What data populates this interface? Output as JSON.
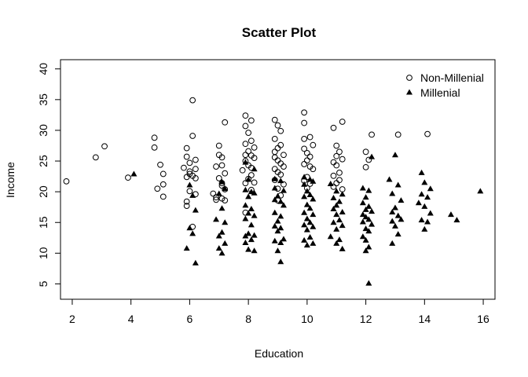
{
  "chart_data": {
    "type": "scatter",
    "title": "Scatter Plot",
    "xlabel": "Education",
    "ylabel": "Income",
    "xlim": [
      1.6,
      16.4
    ],
    "ylim": [
      2.5,
      41.5
    ],
    "xticks": [
      "2",
      "4",
      "6",
      "8",
      "10",
      "12",
      "14",
      "16"
    ],
    "yticks": [
      "5",
      "10",
      "15",
      "20",
      "25",
      "30",
      "35",
      "40"
    ],
    "grid": false,
    "legend_position": "top-right",
    "series": [
      {
        "name": "Non-Millenial",
        "marker": "open-circle",
        "color": "#000000",
        "points": [
          [
            1.8,
            21.7
          ],
          [
            2.8,
            25.6
          ],
          [
            3.1,
            27.4
          ],
          [
            3.9,
            22.3
          ],
          [
            4.8,
            28.8
          ],
          [
            4.8,
            27.2
          ],
          [
            5.0,
            24.4
          ],
          [
            5.1,
            22.9
          ],
          [
            4.9,
            20.5
          ],
          [
            5.1,
            21.2
          ],
          [
            5.1,
            19.2
          ],
          [
            5.9,
            27.1
          ],
          [
            6.1,
            34.9
          ],
          [
            6.1,
            29.1
          ],
          [
            5.9,
            25.7
          ],
          [
            6.2,
            25.2
          ],
          [
            6.0,
            24.7
          ],
          [
            5.8,
            23.9
          ],
          [
            6.0,
            23.3
          ],
          [
            6.2,
            23.7
          ],
          [
            6.1,
            22.6
          ],
          [
            5.9,
            22.4
          ],
          [
            6.0,
            22.9
          ],
          [
            6.2,
            22.2
          ],
          [
            6.0,
            20.1
          ],
          [
            6.2,
            19.6
          ],
          [
            5.9,
            18.4
          ],
          [
            5.9,
            17.7
          ],
          [
            6.1,
            14.3
          ],
          [
            7.2,
            31.3
          ],
          [
            7.0,
            27.5
          ],
          [
            7.0,
            26.0
          ],
          [
            7.1,
            25.6
          ],
          [
            6.9,
            24.1
          ],
          [
            7.1,
            24.3
          ],
          [
            7.2,
            23.0
          ],
          [
            7.0,
            22.2
          ],
          [
            7.1,
            21.4
          ],
          [
            7.1,
            21.0
          ],
          [
            7.2,
            20.4
          ],
          [
            6.8,
            19.7
          ],
          [
            6.9,
            19.1
          ],
          [
            6.9,
            18.7
          ],
          [
            7.1,
            18.9
          ],
          [
            7.2,
            18.6
          ],
          [
            7.9,
            32.4
          ],
          [
            8.1,
            31.6
          ],
          [
            7.9,
            30.7
          ],
          [
            8.0,
            29.6
          ],
          [
            8.1,
            28.3
          ],
          [
            7.9,
            27.8
          ],
          [
            8.2,
            27.2
          ],
          [
            8.0,
            26.6
          ],
          [
            7.9,
            26.0
          ],
          [
            8.1,
            25.9
          ],
          [
            8.2,
            25.5
          ],
          [
            7.9,
            25.0
          ],
          [
            8.0,
            24.3
          ],
          [
            8.1,
            23.9
          ],
          [
            7.8,
            23.5
          ],
          [
            8.1,
            22.7
          ],
          [
            8.0,
            22.1
          ],
          [
            7.9,
            21.4
          ],
          [
            8.2,
            21.5
          ],
          [
            8.1,
            20.3
          ],
          [
            7.9,
            16.6
          ],
          [
            8.9,
            31.7
          ],
          [
            9.0,
            30.8
          ],
          [
            9.1,
            29.9
          ],
          [
            8.9,
            28.6
          ],
          [
            9.1,
            27.6
          ],
          [
            9.0,
            27.1
          ],
          [
            8.9,
            26.5
          ],
          [
            9.2,
            26.0
          ],
          [
            8.9,
            25.6
          ],
          [
            9.0,
            25.1
          ],
          [
            9.1,
            24.6
          ],
          [
            9.2,
            24.1
          ],
          [
            8.9,
            23.7
          ],
          [
            9.0,
            23.2
          ],
          [
            9.1,
            22.8
          ],
          [
            8.9,
            21.9
          ],
          [
            9.2,
            21.2
          ],
          [
            9.0,
            20.5
          ],
          [
            9.1,
            19.4
          ],
          [
            9.0,
            18.6
          ],
          [
            9.9,
            32.9
          ],
          [
            9.9,
            31.2
          ],
          [
            10.1,
            28.9
          ],
          [
            9.9,
            28.6
          ],
          [
            10.2,
            27.6
          ],
          [
            9.9,
            27.0
          ],
          [
            10.0,
            26.3
          ],
          [
            10.1,
            25.7
          ],
          [
            10.0,
            25.1
          ],
          [
            9.9,
            24.5
          ],
          [
            10.1,
            24.1
          ],
          [
            10.2,
            23.7
          ],
          [
            10.0,
            22.4
          ],
          [
            9.9,
            21.8
          ],
          [
            10.1,
            21.3
          ],
          [
            10.0,
            20.6
          ],
          [
            10.9,
            30.4
          ],
          [
            11.2,
            31.4
          ],
          [
            11.0,
            27.5
          ],
          [
            11.1,
            26.5
          ],
          [
            11.0,
            25.8
          ],
          [
            11.2,
            25.3
          ],
          [
            10.9,
            24.8
          ],
          [
            11.0,
            24.3
          ],
          [
            11.1,
            23.1
          ],
          [
            10.9,
            22.6
          ],
          [
            11.1,
            21.9
          ],
          [
            11.0,
            21.4
          ],
          [
            10.9,
            20.8
          ],
          [
            11.2,
            20.4
          ],
          [
            12.0,
            26.5
          ],
          [
            12.2,
            29.3
          ],
          [
            12.1,
            25.2
          ],
          [
            12.0,
            24.0
          ],
          [
            13.1,
            29.3
          ],
          [
            14.1,
            29.4
          ]
        ]
      },
      {
        "name": "Millenial",
        "marker": "filled-triangle",
        "color": "#000000",
        "points": [
          [
            4.1,
            22.9
          ],
          [
            6.0,
            21.1
          ],
          [
            6.1,
            19.4
          ],
          [
            6.2,
            17.0
          ],
          [
            6.0,
            14.1
          ],
          [
            6.1,
            13.2
          ],
          [
            5.9,
            10.8
          ],
          [
            6.2,
            8.4
          ],
          [
            7.1,
            21.6
          ],
          [
            7.2,
            20.5
          ],
          [
            7.0,
            19.7
          ],
          [
            7.1,
            17.3
          ],
          [
            6.9,
            15.5
          ],
          [
            7.2,
            15.0
          ],
          [
            7.1,
            13.4
          ],
          [
            7.0,
            12.8
          ],
          [
            7.2,
            11.6
          ],
          [
            7.0,
            10.8
          ],
          [
            7.1,
            10.0
          ],
          [
            7.9,
            24.8
          ],
          [
            8.2,
            23.7
          ],
          [
            8.0,
            22.0
          ],
          [
            7.9,
            20.3
          ],
          [
            8.1,
            20.0
          ],
          [
            8.2,
            19.8
          ],
          [
            8.0,
            19.2
          ],
          [
            7.9,
            17.8
          ],
          [
            8.1,
            17.2
          ],
          [
            8.0,
            16.5
          ],
          [
            8.2,
            16.1
          ],
          [
            7.9,
            15.6
          ],
          [
            8.1,
            14.6
          ],
          [
            8.0,
            13.2
          ],
          [
            7.9,
            12.8
          ],
          [
            8.2,
            12.9
          ],
          [
            8.1,
            12.2
          ],
          [
            7.9,
            11.7
          ],
          [
            8.0,
            10.6
          ],
          [
            8.2,
            10.4
          ],
          [
            8.9,
            22.1
          ],
          [
            9.1,
            21.8
          ],
          [
            8.9,
            20.6
          ],
          [
            9.2,
            20.2
          ],
          [
            9.0,
            19.3
          ],
          [
            8.9,
            18.7
          ],
          [
            9.1,
            18.4
          ],
          [
            9.2,
            17.8
          ],
          [
            8.9,
            16.6
          ],
          [
            9.1,
            16.0
          ],
          [
            9.0,
            15.2
          ],
          [
            8.9,
            14.4
          ],
          [
            9.1,
            14.1
          ],
          [
            9.0,
            13.6
          ],
          [
            9.2,
            12.3
          ],
          [
            8.9,
            12.0
          ],
          [
            9.1,
            11.7
          ],
          [
            9.0,
            10.4
          ],
          [
            9.1,
            8.6
          ],
          [
            9.9,
            22.4
          ],
          [
            10.1,
            22.0
          ],
          [
            10.2,
            21.7
          ],
          [
            9.9,
            21.2
          ],
          [
            10.0,
            20.1
          ],
          [
            10.1,
            19.5
          ],
          [
            9.9,
            19.2
          ],
          [
            10.2,
            18.8
          ],
          [
            10.0,
            17.9
          ],
          [
            10.1,
            17.3
          ],
          [
            9.9,
            16.6
          ],
          [
            10.2,
            16.3
          ],
          [
            10.0,
            15.6
          ],
          [
            10.1,
            15.0
          ],
          [
            9.9,
            14.6
          ],
          [
            10.2,
            14.3
          ],
          [
            10.0,
            13.8
          ],
          [
            10.1,
            12.6
          ],
          [
            9.9,
            12.1
          ],
          [
            10.2,
            11.6
          ],
          [
            10.0,
            11.3
          ],
          [
            10.8,
            21.3
          ],
          [
            11.0,
            20.1
          ],
          [
            11.2,
            19.6
          ],
          [
            10.9,
            19.0
          ],
          [
            11.1,
            18.4
          ],
          [
            11.0,
            17.8
          ],
          [
            10.9,
            17.2
          ],
          [
            11.2,
            16.7
          ],
          [
            11.0,
            16.3
          ],
          [
            11.1,
            15.4
          ],
          [
            10.9,
            15.0
          ],
          [
            11.2,
            14.5
          ],
          [
            11.0,
            13.9
          ],
          [
            10.8,
            12.7
          ],
          [
            11.1,
            12.2
          ],
          [
            11.0,
            11.6
          ],
          [
            11.2,
            10.7
          ],
          [
            11.9,
            20.6
          ],
          [
            12.1,
            20.2
          ],
          [
            12.2,
            25.7
          ],
          [
            12.0,
            19.1
          ],
          [
            11.9,
            18.2
          ],
          [
            12.1,
            17.6
          ],
          [
            12.0,
            17.1
          ],
          [
            12.2,
            16.8
          ],
          [
            11.9,
            16.3
          ],
          [
            12.0,
            15.9
          ],
          [
            12.1,
            15.5
          ],
          [
            11.9,
            15.1
          ],
          [
            12.2,
            14.7
          ],
          [
            12.0,
            14.0
          ],
          [
            12.1,
            13.6
          ],
          [
            11.9,
            12.7
          ],
          [
            12.0,
            12.1
          ],
          [
            12.1,
            11.0
          ],
          [
            12.0,
            10.4
          ],
          [
            12.1,
            5.1
          ],
          [
            12.8,
            22.0
          ],
          [
            13.0,
            26.0
          ],
          [
            13.1,
            21.1
          ],
          [
            12.9,
            19.7
          ],
          [
            13.2,
            18.6
          ],
          [
            13.0,
            17.4
          ],
          [
            12.9,
            16.7
          ],
          [
            13.1,
            16.1
          ],
          [
            13.2,
            15.5
          ],
          [
            12.9,
            15.2
          ],
          [
            13.0,
            14.4
          ],
          [
            13.1,
            13.1
          ],
          [
            12.9,
            11.6
          ],
          [
            13.9,
            23.1
          ],
          [
            14.0,
            21.5
          ],
          [
            14.2,
            20.5
          ],
          [
            13.9,
            19.6
          ],
          [
            14.1,
            19.1
          ],
          [
            13.8,
            18.2
          ],
          [
            14.0,
            17.6
          ],
          [
            14.2,
            16.5
          ],
          [
            13.9,
            15.4
          ],
          [
            14.1,
            15.1
          ],
          [
            14.0,
            13.9
          ],
          [
            14.9,
            16.3
          ],
          [
            15.1,
            15.4
          ],
          [
            15.9,
            20.1
          ]
        ]
      }
    ]
  }
}
